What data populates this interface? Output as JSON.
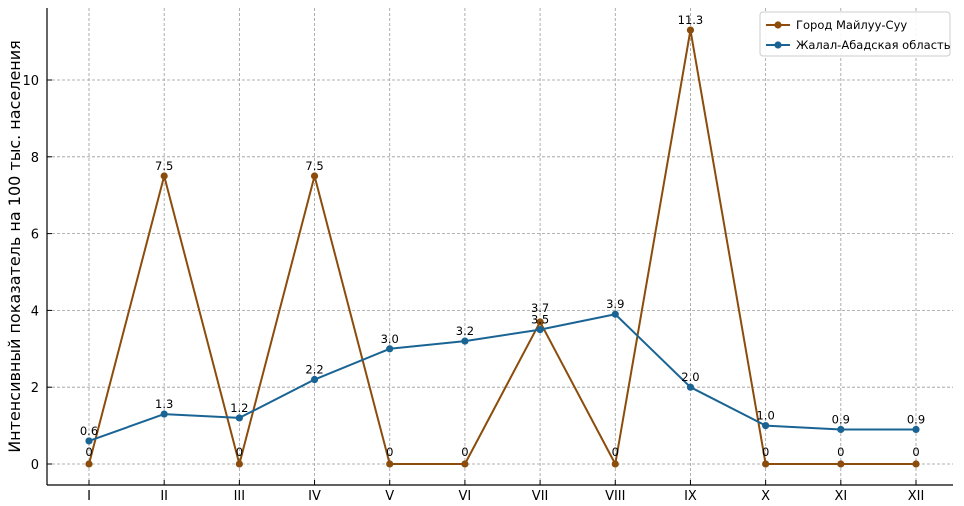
{
  "chart_data": {
    "type": "line",
    "categories": [
      "I",
      "II",
      "III",
      "IV",
      "V",
      "VI",
      "VII",
      "VIII",
      "IX",
      "X",
      "XI",
      "XII"
    ],
    "ylabel": "Интенсивный показатель на 100 тыс. населения",
    "ylim": [
      -0.6,
      11.6
    ],
    "yticks": [
      0,
      2,
      4,
      6,
      8,
      10
    ],
    "grid": true,
    "legend_position": "top-right",
    "series": [
      {
        "name": "Город Майлуу-Суу",
        "color": "#8b4c0c",
        "values": [
          0,
          7.5,
          0,
          7.5,
          0,
          0,
          3.7,
          0,
          11.3,
          0,
          0,
          0
        ],
        "labels": [
          "0",
          "7.5",
          "0",
          "7.5",
          "0",
          "0",
          "3.7",
          "0",
          "11.3",
          "0",
          "0",
          "0"
        ]
      },
      {
        "name": "Жалал-Абадская область",
        "color": "#1a6494",
        "values": [
          0.6,
          1.3,
          1.2,
          2.2,
          3.0,
          3.2,
          3.5,
          3.9,
          2.0,
          1.0,
          0.9,
          0.9
        ],
        "labels": [
          "0.6",
          "1.3",
          "1.2",
          "2.2",
          "3.0",
          "3.2",
          "3.5",
          "3.9",
          "2.0",
          "1.0",
          "0.9",
          "0.9"
        ]
      }
    ]
  }
}
